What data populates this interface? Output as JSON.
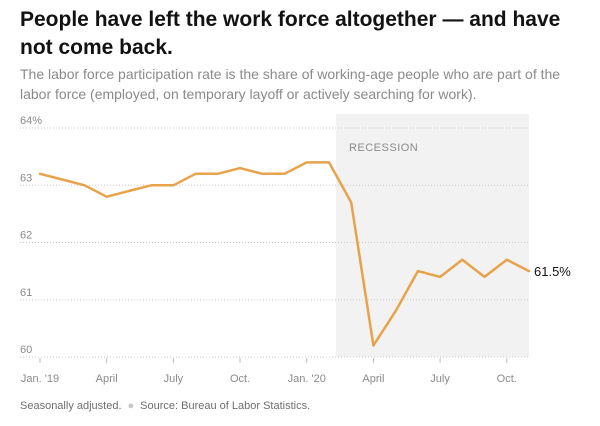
{
  "headline": "People have left the work force altogether — and have not come back.",
  "subhead": "The labor force participation rate is the share of working-age people who are part of the labor force (employed, on temporary layoff or actively searching for work).",
  "footer": {
    "note": "Seasonally adjusted.",
    "source": "Source: Bureau of Labor Statistics."
  },
  "chart_data": {
    "type": "line",
    "title": "",
    "xlabel": "",
    "ylabel": "",
    "x": [
      "2019-01",
      "2019-02",
      "2019-03",
      "2019-04",
      "2019-05",
      "2019-06",
      "2019-07",
      "2019-08",
      "2019-09",
      "2019-10",
      "2019-11",
      "2019-12",
      "2020-01",
      "2020-02",
      "2020-03",
      "2020-04",
      "2020-05",
      "2020-06",
      "2020-07",
      "2020-08",
      "2020-09",
      "2020-10",
      "2020-11"
    ],
    "series": [
      {
        "values": [
          63.2,
          63.1,
          63.0,
          62.8,
          62.9,
          63.0,
          63.0,
          63.2,
          63.2,
          63.3,
          63.2,
          63.2,
          63.4,
          63.4,
          62.7,
          60.2,
          60.8,
          61.5,
          61.4,
          61.7,
          61.4,
          61.7,
          61.5
        ],
        "color": "#e8a24a"
      }
    ],
    "ylim": [
      60,
      64
    ],
    "yticks": [
      {
        "value": 64,
        "label": "64%"
      },
      {
        "value": 63,
        "label": "63"
      },
      {
        "value": 62,
        "label": "62"
      },
      {
        "value": 61,
        "label": "61"
      },
      {
        "value": 60,
        "label": "60"
      }
    ],
    "xticks": [
      {
        "x": "2019-01",
        "label": "Jan. '19"
      },
      {
        "x": "2019-04",
        "label": "April"
      },
      {
        "x": "2019-07",
        "label": "July"
      },
      {
        "x": "2019-10",
        "label": "Oct."
      },
      {
        "x": "2020-01",
        "label": "Jan. '20"
      },
      {
        "x": "2020-04",
        "label": "April"
      },
      {
        "x": "2020-07",
        "label": "July"
      },
      {
        "x": "2020-10",
        "label": "Oct."
      }
    ],
    "shaded_region": {
      "start": "2020-02",
      "end": "2020-11",
      "label": "RECESSION",
      "color": "#f2f2f2"
    },
    "end_label": "61.5%",
    "grid": true,
    "grid_style": "dotted"
  }
}
